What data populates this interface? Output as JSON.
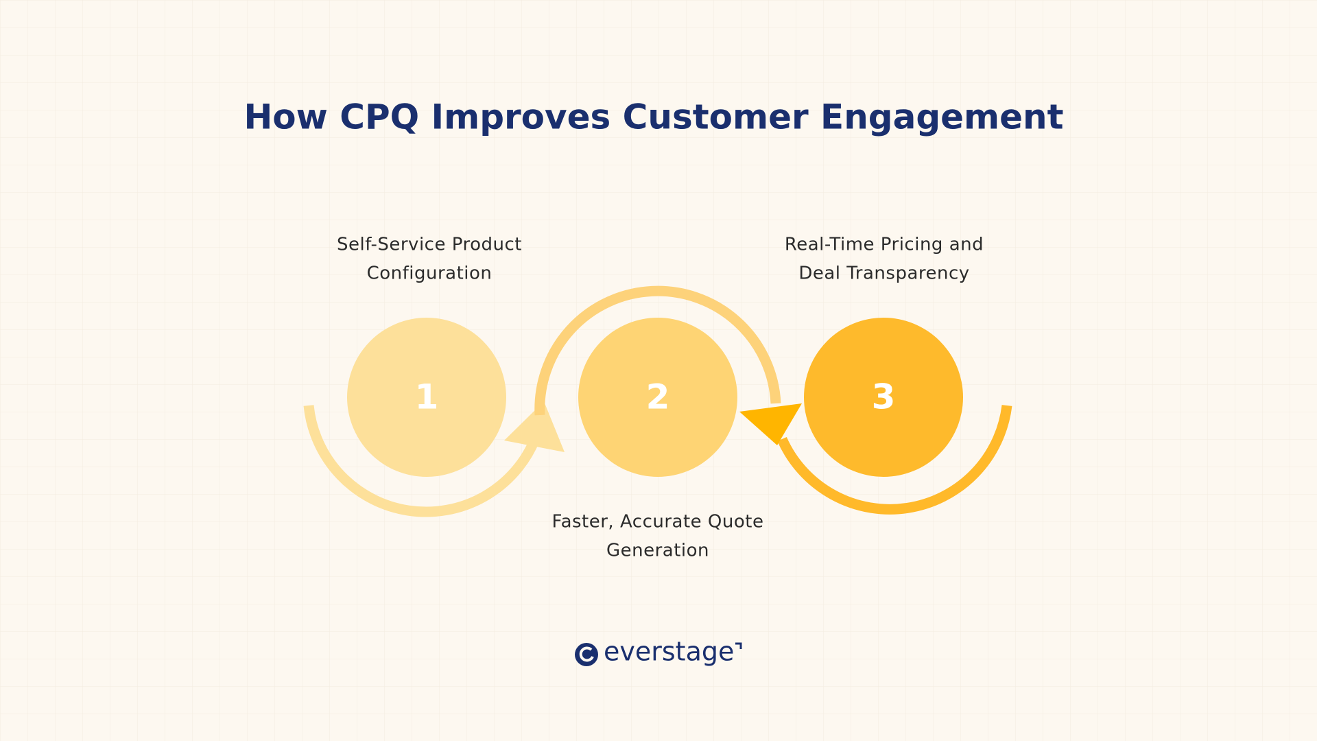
{
  "header": {
    "title": "How CPQ Improves Customer Engagement"
  },
  "steps": [
    {
      "number": "1",
      "label_lines": [
        "Self-Service Product",
        "Configuration"
      ]
    },
    {
      "number": "2",
      "label_lines": [
        "Faster, Accurate Quote",
        "Generation"
      ]
    },
    {
      "number": "3",
      "label_lines": [
        "Real-Time Pricing and",
        "Deal Transparency"
      ]
    }
  ],
  "footer": {
    "logo": "everstage"
  }
}
